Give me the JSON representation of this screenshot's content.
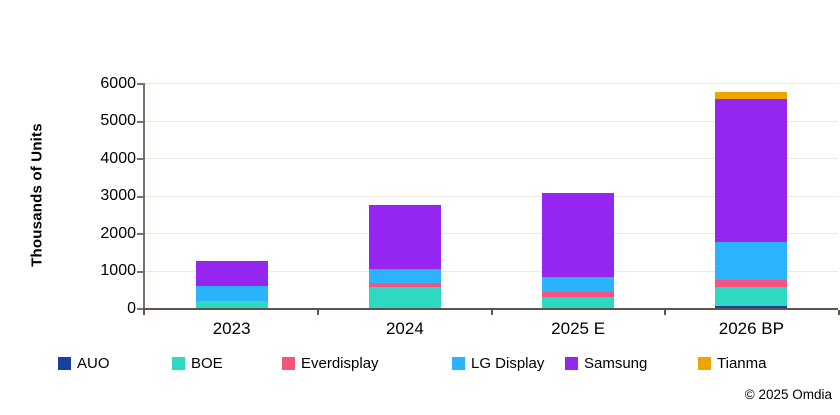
{
  "y_axis_title": "Thousands of Units",
  "copyright": "© 2025 Omdia",
  "colors": {
    "background": "#ffffff",
    "y_axis_line": "#7f7066",
    "x_axis_line": "#5e544c",
    "gridline": "#e9e9e9",
    "text": "#000000"
  },
  "chart_data": {
    "type": "bar",
    "stacked": true,
    "title": "",
    "xlabel": "",
    "ylabel": "Thousands of Units",
    "categories": [
      "2023",
      "2024",
      "2025 E",
      "2026 BP"
    ],
    "series": [
      {
        "name": "AUO",
        "color": "#1b3f9e",
        "values": [
          0,
          0,
          0,
          60
        ]
      },
      {
        "name": "BOE",
        "color": "#2ed9c3",
        "values": [
          200,
          560,
          290,
          500
        ]
      },
      {
        "name": "Everdisplay",
        "color": "#f4547d",
        "values": [
          0,
          105,
          135,
          195
        ]
      },
      {
        "name": "LG Display",
        "color": "#2bb3fe",
        "values": [
          375,
          375,
          400,
          995
        ]
      },
      {
        "name": "Samsung",
        "color": "#9426f0",
        "values": [
          685,
          1715,
          2235,
          3830
        ]
      },
      {
        "name": "Tianma",
        "color": "#efa500",
        "values": [
          0,
          0,
          0,
          175
        ]
      }
    ],
    "totals": [
      1260,
      2755,
      3060,
      5755
    ],
    "ylim": [
      0,
      6000
    ],
    "ytick_step": 1000,
    "grid": true,
    "legend_position": "bottom"
  }
}
